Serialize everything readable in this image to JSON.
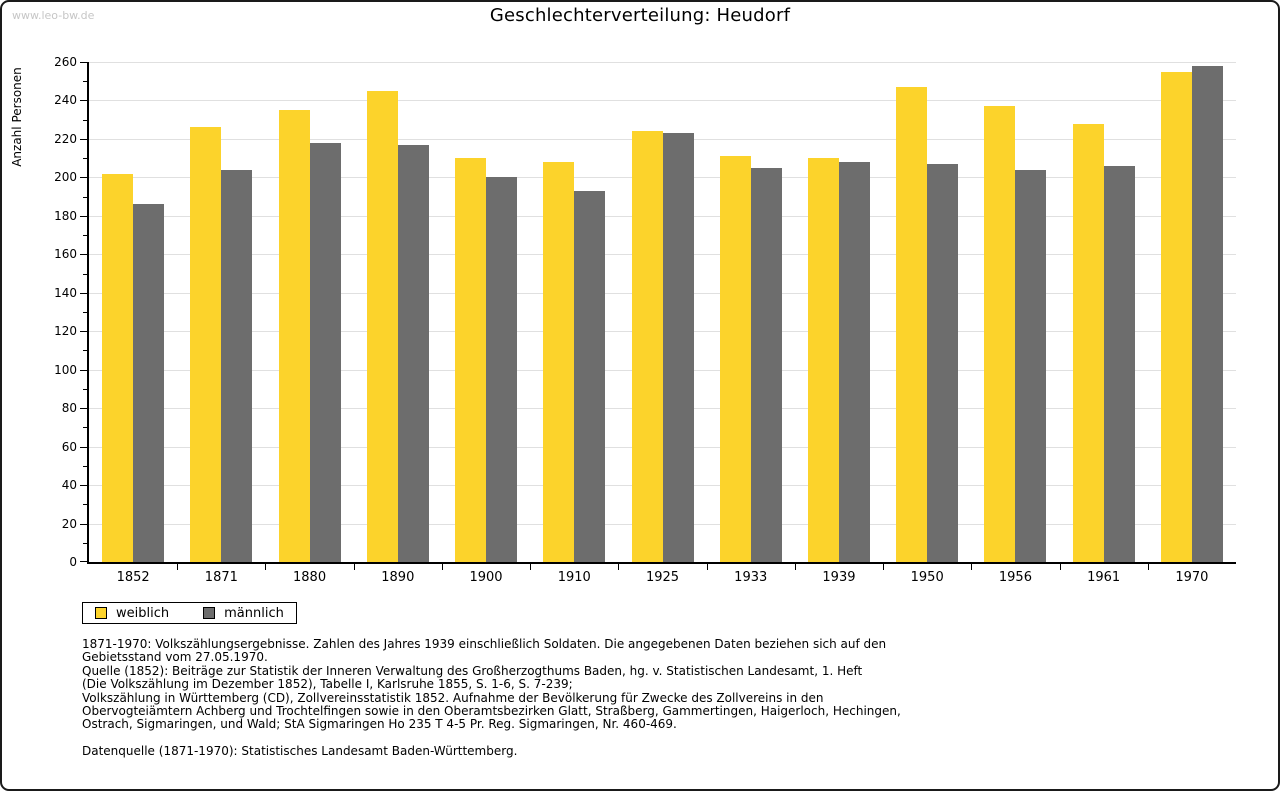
{
  "watermark": "www.leo-bw.de",
  "chart_data": {
    "type": "bar",
    "title": "Geschlechterverteilung: Heudorf",
    "xlabel": "",
    "ylabel": "Anzahl Personen",
    "ylim": [
      0,
      260
    ],
    "ytick_step": 20,
    "yminor_step": 10,
    "grid": true,
    "legend_position": "bottom-left",
    "categories": [
      "1852",
      "1871",
      "1880",
      "1890",
      "1900",
      "1910",
      "1925",
      "1933",
      "1939",
      "1950",
      "1956",
      "1961",
      "1970"
    ],
    "series": [
      {
        "name": "weiblich",
        "color": "#fcd32b",
        "values": [
          202,
          226,
          235,
          245,
          210,
          208,
          224,
          211,
          210,
          247,
          237,
          228,
          255
        ]
      },
      {
        "name": "männlich",
        "color": "#6d6d6d",
        "values": [
          186,
          204,
          218,
          217,
          200,
          193,
          223,
          205,
          208,
          207,
          204,
          206,
          258
        ]
      }
    ]
  },
  "footer": {
    "lines": [
      "1871-1970: Volkszählungsergebnisse. Zahlen des Jahres 1939 einschließlich Soldaten. Die angegebenen Daten beziehen sich auf den",
      "Gebietsstand vom 27.05.1970.",
      "Quelle (1852): Beiträge zur Statistik der Inneren Verwaltung des Großherzogthums Baden, hg. v. Statistischen Landesamt, 1. Heft",
      "(Die Volkszählung im Dezember 1852), Tabelle I, Karlsruhe 1855, S. 1-6, S. 7-239;",
      "Volkszählung in Württemberg (CD), Zollvereinsstatistik 1852. Aufnahme der Bevölkerung für Zwecke des Zollvereins in den",
      "Obervogteiämtern Achberg und Trochtelfingen sowie in den Oberamtsbezirken Glatt, Straßberg, Gammertingen, Haigerloch, Hechingen,",
      "Ostrach, Sigmaringen, und Wald; StA Sigmaringen Ho 235 T 4-5 Pr. Reg. Sigmaringen, Nr. 460-469."
    ],
    "datasource": "Datenquelle (1871-1970): Statistisches Landesamt Baden-Württemberg."
  }
}
